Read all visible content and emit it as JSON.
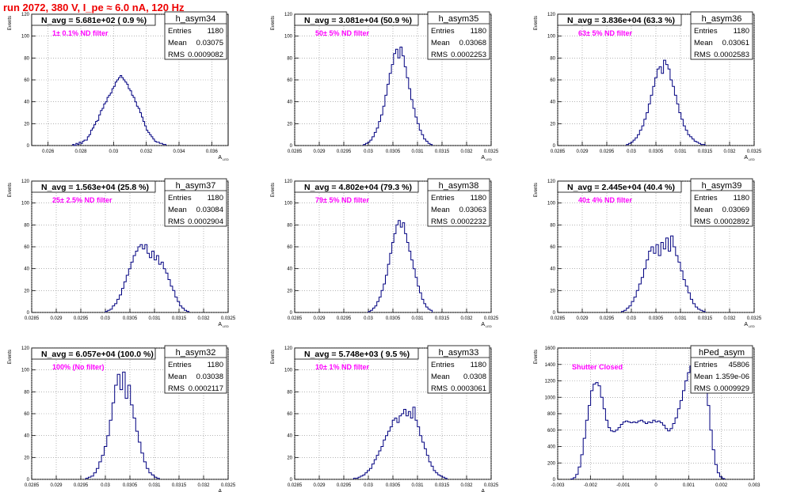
{
  "canvas_title": "run 2072,   380 V, I_pe ≈ 6.0 nA, 120 Hz",
  "colors": {
    "title": "#ee0000",
    "annotation": "#ff00ff",
    "histogram": "#000080",
    "axis": "#000000",
    "grid": "#888888"
  },
  "chart_data": [
    {
      "type": "bar",
      "histogram": "h_asym34",
      "title": "N_avg = 5.681e+02 ( 0.9 %)",
      "annotation": "1± 0.1% ND filter",
      "stats": {
        "entries_label": "Entries",
        "entries": "1180",
        "mean_label": "Mean",
        "mean": "0.03075",
        "rms_label": "RMS",
        "rms": "0.0009082"
      },
      "xlabel": "A",
      "xlabel_sub": "LED",
      "ylabel": "Events",
      "xlim": [
        0.025,
        0.037
      ],
      "ylim": [
        0,
        120
      ],
      "xticks": [
        "0.026",
        "0.028",
        "0.03",
        "0.032",
        "0.034",
        "0.036"
      ],
      "xtick_values": [
        0.026,
        0.028,
        0.03,
        0.032,
        0.034,
        0.036
      ],
      "yticks": [
        0,
        20,
        40,
        60,
        80,
        100,
        120
      ],
      "bin_edges": [
        0.0275,
        0.0332
      ],
      "values": [
        1,
        0,
        2,
        1,
        3,
        2,
        4,
        5,
        5,
        8,
        10,
        14,
        16,
        19,
        22,
        23,
        28,
        32,
        34,
        38,
        40,
        44,
        46,
        48,
        52,
        54,
        58,
        60,
        62,
        64,
        62,
        60,
        58,
        56,
        52,
        50,
        46,
        44,
        40,
        36,
        34,
        30,
        26,
        22,
        18,
        14,
        12,
        10,
        8,
        6,
        4,
        3,
        3,
        2,
        2,
        1,
        1
      ]
    },
    {
      "type": "bar",
      "histogram": "h_asym35",
      "title": "N_avg = 3.081e+04 (50.9 %)",
      "annotation": "50± 5% ND filter",
      "stats": {
        "entries_label": "Entries",
        "entries": "1180",
        "mean_label": "Mean",
        "mean": "0.03068",
        "rms_label": "RMS",
        "rms": "0.0002253"
      },
      "xlabel": "A",
      "xlabel_sub": "LED",
      "ylabel": "Events",
      "xlim": [
        0.0285,
        0.0325
      ],
      "ylim": [
        0,
        120
      ],
      "xticks": [
        "0.0285",
        "0.029",
        "0.0295",
        "0.03",
        "0.0305",
        "0.031",
        "0.0315",
        "0.032",
        "0.0325"
      ],
      "xtick_values": [
        0.0285,
        0.029,
        0.0295,
        0.03,
        0.0305,
        0.031,
        0.0315,
        0.032,
        0.0325
      ],
      "yticks": [
        0,
        20,
        40,
        60,
        80,
        100,
        120
      ],
      "bin_edges": [
        0.0299,
        0.0313
      ],
      "values": [
        1,
        2,
        3,
        5,
        8,
        12,
        16,
        22,
        28,
        36,
        46,
        56,
        66,
        74,
        84,
        88,
        80,
        90,
        82,
        72,
        62,
        52,
        42,
        34,
        26,
        20,
        14,
        10,
        6,
        4,
        2,
        1
      ]
    },
    {
      "type": "bar",
      "histogram": "h_asym36",
      "title": "N_avg = 3.836e+04 (63.3 %)",
      "annotation": "63± 5% ND filter",
      "stats": {
        "entries_label": "Entries",
        "entries": "1180",
        "mean_label": "Mean",
        "mean": "0.03061",
        "rms_label": "RMS",
        "rms": "0.0002583"
      },
      "xlabel": "A",
      "xlabel_sub": "LED",
      "ylabel": "Events",
      "xlim": [
        0.0285,
        0.0325
      ],
      "ylim": [
        0,
        120
      ],
      "xticks": [
        "0.0285",
        "0.029",
        "0.0295",
        "0.03",
        "0.0305",
        "0.031",
        "0.0315",
        "0.032",
        "0.0325"
      ],
      "xtick_values": [
        0.0285,
        0.029,
        0.0295,
        0.03,
        0.0305,
        0.031,
        0.0315,
        0.032,
        0.0325
      ],
      "yticks": [
        0,
        20,
        40,
        60,
        80,
        100,
        120
      ],
      "bin_edges": [
        0.0299,
        0.0315
      ],
      "values": [
        1,
        2,
        3,
        5,
        7,
        10,
        14,
        18,
        24,
        30,
        38,
        46,
        54,
        62,
        70,
        72,
        66,
        78,
        74,
        70,
        60,
        54,
        46,
        38,
        30,
        24,
        18,
        14,
        10,
        8,
        6,
        4,
        3,
        2,
        1,
        1
      ]
    },
    {
      "type": "bar",
      "histogram": "h_asym37",
      "title": "N_avg = 1.563e+04 (25.8 %)",
      "annotation": "25± 2.5% ND filter",
      "stats": {
        "entries_label": "Entries",
        "entries": "1180",
        "mean_label": "Mean",
        "mean": "0.03084",
        "rms_label": "RMS",
        "rms": "0.0002904"
      },
      "xlabel": "A",
      "xlabel_sub": "LED",
      "ylabel": "Events",
      "xlim": [
        0.0285,
        0.0325
      ],
      "ylim": [
        0,
        120
      ],
      "xticks": [
        "0.0285",
        "0.029",
        "0.0295",
        "0.03",
        "0.0305",
        "0.031",
        "0.0315",
        "0.032",
        "0.0325"
      ],
      "xtick_values": [
        0.0285,
        0.029,
        0.0295,
        0.03,
        0.0305,
        0.031,
        0.0315,
        0.032,
        0.0325
      ],
      "yticks": [
        0,
        20,
        40,
        60,
        80,
        100,
        120
      ],
      "bin_edges": [
        0.03,
        0.0317
      ],
      "values": [
        1,
        2,
        3,
        6,
        8,
        12,
        16,
        22,
        28,
        34,
        40,
        46,
        52,
        56,
        60,
        62,
        58,
        62,
        54,
        50,
        56,
        48,
        52,
        44,
        46,
        40,
        36,
        30,
        24,
        20,
        14,
        10,
        6,
        4,
        2,
        1
      ]
    },
    {
      "type": "bar",
      "histogram": "h_asym38",
      "title": "N_avg = 4.802e+04 (79.3 %)",
      "annotation": "79± 5% ND filter",
      "stats": {
        "entries_label": "Entries",
        "entries": "1180",
        "mean_label": "Mean",
        "mean": "0.03063",
        "rms_label": "RMS",
        "rms": "0.0002232"
      },
      "xlabel": "A",
      "xlabel_sub": "LED",
      "ylabel": "Events",
      "xlim": [
        0.0285,
        0.0325
      ],
      "ylim": [
        0,
        120
      ],
      "xticks": [
        "0.0285",
        "0.029",
        "0.0295",
        "0.03",
        "0.0305",
        "0.031",
        "0.0315",
        "0.032",
        "0.0325"
      ],
      "xtick_values": [
        0.0285,
        0.029,
        0.0295,
        0.03,
        0.0305,
        0.031,
        0.0315,
        0.032,
        0.0325
      ],
      "yticks": [
        0,
        20,
        40,
        60,
        80,
        100,
        120
      ],
      "bin_edges": [
        0.03,
        0.0313
      ],
      "values": [
        1,
        2,
        4,
        6,
        10,
        14,
        20,
        26,
        34,
        44,
        54,
        64,
        72,
        80,
        84,
        78,
        82,
        72,
        64,
        56,
        48,
        40,
        32,
        24,
        18,
        12,
        8,
        5,
        3,
        2
      ]
    },
    {
      "type": "bar",
      "histogram": "h_asym39",
      "title": "N_avg = 2.445e+04 (40.4 %)",
      "annotation": "40± 4% ND filter",
      "stats": {
        "entries_label": "Entries",
        "entries": "1180",
        "mean_label": "Mean",
        "mean": "0.03069",
        "rms_label": "RMS",
        "rms": "0.0002892"
      },
      "xlabel": "A",
      "xlabel_sub": "LED",
      "ylabel": "Events",
      "xlim": [
        0.0285,
        0.0325
      ],
      "ylim": [
        0,
        120
      ],
      "xticks": [
        "0.0285",
        "0.029",
        "0.0295",
        "0.03",
        "0.0305",
        "0.031",
        "0.0315",
        "0.032",
        "0.0325"
      ],
      "xtick_values": [
        0.0285,
        0.029,
        0.0295,
        0.03,
        0.0305,
        0.031,
        0.0315,
        0.032,
        0.0325
      ],
      "yticks": [
        0,
        20,
        40,
        60,
        80,
        100,
        120
      ],
      "bin_edges": [
        0.0298,
        0.0315
      ],
      "values": [
        1,
        2,
        4,
        6,
        10,
        14,
        20,
        26,
        32,
        40,
        48,
        56,
        60,
        54,
        62,
        52,
        64,
        58,
        68,
        56,
        70,
        60,
        52,
        46,
        38,
        30,
        24,
        18,
        12,
        8,
        5,
        3,
        2,
        1
      ]
    },
    {
      "type": "bar",
      "histogram": "h_asym32",
      "title": "N_avg = 6.057e+04 (100.0 %)",
      "annotation": "100% (No filter)",
      "stats": {
        "entries_label": "Entries",
        "entries": "1180",
        "mean_label": "Mean",
        "mean": "0.03038",
        "rms_label": "RMS",
        "rms": "0.0002117"
      },
      "xlabel": "A",
      "xlabel_sub": "LED",
      "ylabel": "Events",
      "xlim": [
        0.0285,
        0.0325
      ],
      "ylim": [
        0,
        120
      ],
      "xticks": [
        "0.0285",
        "0.029",
        "0.0295",
        "0.03",
        "0.0305",
        "0.031",
        "0.0315",
        "0.032",
        "0.0325"
      ],
      "xtick_values": [
        0.0285,
        0.029,
        0.0295,
        0.03,
        0.0305,
        0.031,
        0.0315,
        0.032,
        0.0325
      ],
      "yticks": [
        0,
        20,
        40,
        60,
        80,
        100,
        120
      ],
      "bin_edges": [
        0.0296,
        0.0311
      ],
      "values": [
        1,
        2,
        3,
        6,
        10,
        16,
        22,
        30,
        40,
        54,
        70,
        86,
        96,
        82,
        98,
        74,
        86,
        68,
        56,
        44,
        34,
        24,
        16,
        10,
        6,
        4,
        2,
        1
      ]
    },
    {
      "type": "bar",
      "histogram": "h_asym33",
      "title": "N_avg = 5.748e+03 ( 9.5 %)",
      "annotation": "10± 1% ND filter",
      "stats": {
        "entries_label": "Entries",
        "entries": "1180",
        "mean_label": "Mean",
        "mean": "0.0308",
        "rms_label": "RMS",
        "rms": "0.0003061"
      },
      "xlabel": "A",
      "xlabel_sub": "LED",
      "ylabel": "Events",
      "xlim": [
        0.0285,
        0.0325
      ],
      "ylim": [
        0,
        120
      ],
      "xticks": [
        "0.0285",
        "0.029",
        "0.0295",
        "0.03",
        "0.0305",
        "0.031",
        "0.0315",
        "0.032",
        "0.0325"
      ],
      "xtick_values": [
        0.0285,
        0.029,
        0.0295,
        0.03,
        0.0305,
        0.031,
        0.0315,
        0.032,
        0.0325
      ],
      "yticks": [
        0,
        20,
        40,
        60,
        80,
        100,
        120
      ],
      "bin_edges": [
        0.0297,
        0.0316
      ],
      "values": [
        1,
        1,
        2,
        3,
        4,
        6,
        8,
        10,
        14,
        18,
        22,
        26,
        30,
        36,
        40,
        44,
        48,
        54,
        56,
        52,
        58,
        60,
        64,
        58,
        62,
        56,
        66,
        54,
        48,
        40,
        34,
        28,
        22,
        16,
        12,
        8,
        6,
        4,
        3,
        2,
        1
      ]
    },
    {
      "type": "bar",
      "histogram": "hPed_asym",
      "title": "",
      "annotation": "Shutter Closed",
      "stats": {
        "entries_label": "Entries",
        "entries": "45806",
        "mean_label": "Mean",
        "mean": "1.359e-06",
        "rms_label": "RMS",
        "rms": "0.0009929"
      },
      "xlabel": "",
      "xlabel_sub": "",
      "ylabel": "Events",
      "xlim": [
        -0.003,
        0.003
      ],
      "ylim": [
        0,
        1600
      ],
      "xticks": [
        "-0.003",
        "-0.002",
        "-0.001",
        "0",
        "0.001",
        "0.002",
        "0.003"
      ],
      "xtick_values": [
        -0.003,
        -0.002,
        -0.001,
        0,
        0.001,
        0.002,
        0.003
      ],
      "yticks": [
        0,
        200,
        400,
        600,
        800,
        1000,
        1200,
        1400,
        1600
      ],
      "bin_edges": [
        -0.0026,
        0.0021
      ],
      "values": [
        5,
        20,
        60,
        150,
        300,
        500,
        720,
        900,
        1080,
        1160,
        1180,
        1140,
        1000,
        860,
        720,
        630,
        590,
        580,
        600,
        630,
        670,
        700,
        710,
        700,
        690,
        700,
        690,
        710,
        720,
        700,
        680,
        700,
        690,
        720,
        700,
        710,
        690,
        660,
        620,
        590,
        620,
        680,
        750,
        860,
        960,
        1080,
        1200,
        1300,
        1380,
        1450,
        1500,
        1560,
        1520,
        1420,
        1200,
        900,
        600,
        360,
        180,
        80,
        30,
        10
      ]
    }
  ]
}
